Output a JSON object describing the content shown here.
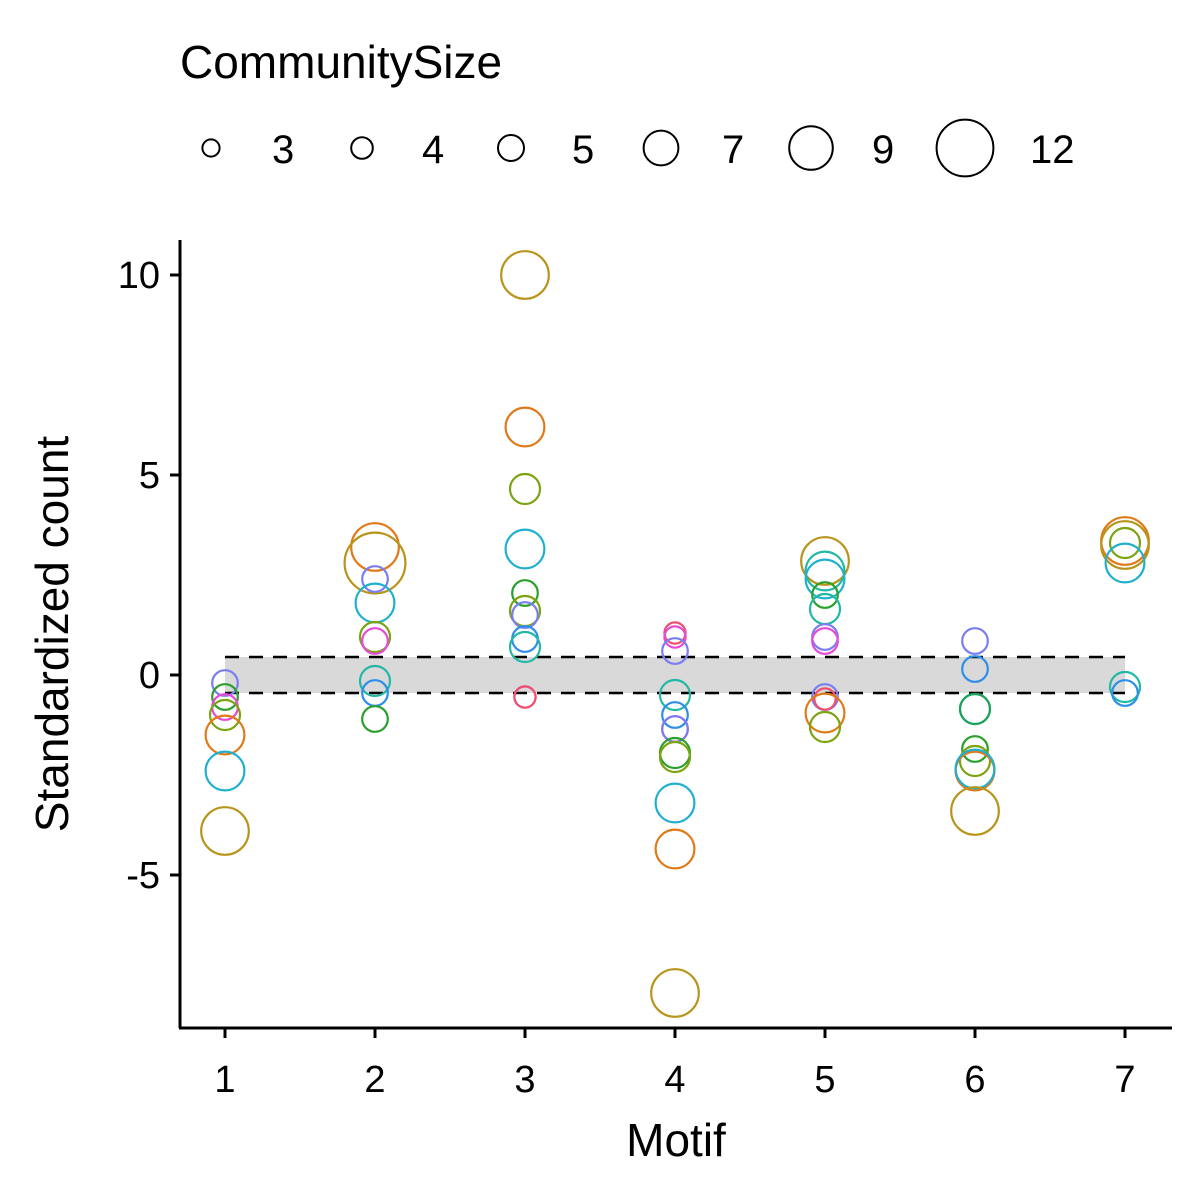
{
  "chart_data": {
    "type": "scatter",
    "xlabel": "Motif",
    "ylabel": "Standardized count",
    "x_ticks": [
      "1",
      "2",
      "3",
      "4",
      "5",
      "6",
      "7"
    ],
    "y_ticks": [
      "10",
      "5",
      "0",
      "-5"
    ],
    "xlim": [
      0.7,
      7.3
    ],
    "ylim": [
      -8.8,
      10.9
    ],
    "grid": false,
    "reference_band": {
      "low": -0.45,
      "high": 0.45,
      "color": "#d9d9d9",
      "line_style": "dashed"
    },
    "legend": {
      "title": "CommunitySize",
      "placement": "top",
      "entries": [
        {
          "label": "3",
          "size": 3
        },
        {
          "label": "4",
          "size": 4
        },
        {
          "label": "5",
          "size": 5
        },
        {
          "label": "7",
          "size": 7
        },
        {
          "label": "9",
          "size": 9
        },
        {
          "label": "12",
          "size": 12
        }
      ]
    },
    "points": [
      {
        "x": 1,
        "y": -0.2,
        "size": 4,
        "color": "#7b7ef2"
      },
      {
        "x": 1,
        "y": -0.55,
        "size": 4,
        "color": "#2ca02c"
      },
      {
        "x": 1,
        "y": -0.8,
        "size": 4,
        "color": "#e84ad8"
      },
      {
        "x": 1,
        "y": -1.0,
        "size": 5,
        "color": "#7ca312"
      },
      {
        "x": 1,
        "y": -1.5,
        "size": 7,
        "color": "#e07a18"
      },
      {
        "x": 1,
        "y": -2.4,
        "size": 7,
        "color": "#1fb0cf"
      },
      {
        "x": 1,
        "y": -3.9,
        "size": 9,
        "color": "#b8941a"
      },
      {
        "x": 2,
        "y": 3.2,
        "size": 9,
        "color": "#e07a18"
      },
      {
        "x": 2,
        "y": 2.8,
        "size": 12,
        "color": "#b8941a"
      },
      {
        "x": 2,
        "y": 2.4,
        "size": 4,
        "color": "#7b7ef2"
      },
      {
        "x": 2,
        "y": 1.8,
        "size": 7,
        "color": "#1fb0cf"
      },
      {
        "x": 2,
        "y": 0.95,
        "size": 5,
        "color": "#7ca312"
      },
      {
        "x": 2,
        "y": 0.85,
        "size": 4,
        "color": "#e84ad8"
      },
      {
        "x": 2,
        "y": -0.15,
        "size": 5,
        "color": "#22b8a5"
      },
      {
        "x": 2,
        "y": -0.45,
        "size": 4,
        "color": "#2f8fe8"
      },
      {
        "x": 2,
        "y": -1.1,
        "size": 4,
        "color": "#2ca02c"
      },
      {
        "x": 3,
        "y": 10.0,
        "size": 9,
        "color": "#b8941a"
      },
      {
        "x": 3,
        "y": 6.2,
        "size": 7,
        "color": "#e07a18"
      },
      {
        "x": 3,
        "y": 4.65,
        "size": 5,
        "color": "#7ca312"
      },
      {
        "x": 3,
        "y": 3.15,
        "size": 7,
        "color": "#1fb0cf"
      },
      {
        "x": 3,
        "y": 2.05,
        "size": 4,
        "color": "#2ca02c"
      },
      {
        "x": 3,
        "y": 1.6,
        "size": 5,
        "color": "#7ca312"
      },
      {
        "x": 3,
        "y": 1.5,
        "size": 4,
        "color": "#7b7ef2"
      },
      {
        "x": 3,
        "y": 0.9,
        "size": 4,
        "color": "#2f8fe8"
      },
      {
        "x": 3,
        "y": 0.7,
        "size": 5,
        "color": "#22b8a5"
      },
      {
        "x": 3,
        "y": -0.55,
        "size": 3,
        "color": "#e84ad8"
      },
      {
        "x": 3,
        "y": -0.55,
        "size": 3,
        "color": "#f0506e"
      },
      {
        "x": 4,
        "y": 1.05,
        "size": 3,
        "color": "#f0506e"
      },
      {
        "x": 4,
        "y": 0.95,
        "size": 3,
        "color": "#e84ad8"
      },
      {
        "x": 4,
        "y": 0.6,
        "size": 4,
        "color": "#7b7ef2"
      },
      {
        "x": 4,
        "y": -0.5,
        "size": 5,
        "color": "#22b8a5"
      },
      {
        "x": 4,
        "y": -1.0,
        "size": 4,
        "color": "#2f8fe8"
      },
      {
        "x": 4,
        "y": -1.35,
        "size": 4,
        "color": "#e84ad8"
      },
      {
        "x": 4,
        "y": -1.35,
        "size": 4,
        "color": "#7b7ef2"
      },
      {
        "x": 4,
        "y": -1.95,
        "size": 5,
        "color": "#2ca02c"
      },
      {
        "x": 4,
        "y": -2.05,
        "size": 5,
        "color": "#7ca312"
      },
      {
        "x": 4,
        "y": -3.2,
        "size": 7,
        "color": "#1fb0cf"
      },
      {
        "x": 4,
        "y": -4.35,
        "size": 7,
        "color": "#e07a18"
      },
      {
        "x": 4,
        "y": -7.95,
        "size": 9,
        "color": "#b8941a"
      },
      {
        "x": 5,
        "y": 2.85,
        "size": 9,
        "color": "#b8941a"
      },
      {
        "x": 5,
        "y": 2.6,
        "size": 7,
        "color": "#22b8a5"
      },
      {
        "x": 5,
        "y": 2.4,
        "size": 7,
        "color": "#1fb0cf"
      },
      {
        "x": 5,
        "y": 2.0,
        "size": 4,
        "color": "#2ca02c"
      },
      {
        "x": 5,
        "y": 1.65,
        "size": 5,
        "color": "#22b8a5"
      },
      {
        "x": 5,
        "y": 0.95,
        "size": 4,
        "color": "#7b7ef2"
      },
      {
        "x": 5,
        "y": 0.85,
        "size": 4,
        "color": "#e84ad8"
      },
      {
        "x": 5,
        "y": -0.55,
        "size": 4,
        "color": "#7b7ef2"
      },
      {
        "x": 5,
        "y": -0.6,
        "size": 3,
        "color": "#f0506e"
      },
      {
        "x": 5,
        "y": -0.95,
        "size": 7,
        "color": "#e07a18"
      },
      {
        "x": 5,
        "y": -1.3,
        "size": 5,
        "color": "#7ca312"
      },
      {
        "x": 6,
        "y": 0.85,
        "size": 4,
        "color": "#7b7ef2"
      },
      {
        "x": 6,
        "y": 0.15,
        "size": 4,
        "color": "#2f8fe8"
      },
      {
        "x": 6,
        "y": -0.85,
        "size": 5,
        "color": "#22b8a5"
      },
      {
        "x": 6,
        "y": -0.85,
        "size": 5,
        "color": "#1fa05a"
      },
      {
        "x": 6,
        "y": -1.85,
        "size": 4,
        "color": "#2ca02c"
      },
      {
        "x": 6,
        "y": -2.15,
        "size": 5,
        "color": "#7ca312"
      },
      {
        "x": 6,
        "y": -2.4,
        "size": 7,
        "color": "#e07a18"
      },
      {
        "x": 6,
        "y": -2.35,
        "size": 7,
        "color": "#1fb0cf"
      },
      {
        "x": 6,
        "y": -3.4,
        "size": 9,
        "color": "#b8941a"
      },
      {
        "x": 7,
        "y": 3.35,
        "size": 9,
        "color": "#e07a18"
      },
      {
        "x": 7,
        "y": 3.25,
        "size": 9,
        "color": "#b8941a"
      },
      {
        "x": 7,
        "y": 3.3,
        "size": 5,
        "color": "#7ca312"
      },
      {
        "x": 7,
        "y": 2.8,
        "size": 7,
        "color": "#1fb0cf"
      },
      {
        "x": 7,
        "y": -0.3,
        "size": 5,
        "color": "#22b8a5"
      },
      {
        "x": 7,
        "y": -0.45,
        "size": 4,
        "color": "#2f8fe8"
      }
    ]
  }
}
